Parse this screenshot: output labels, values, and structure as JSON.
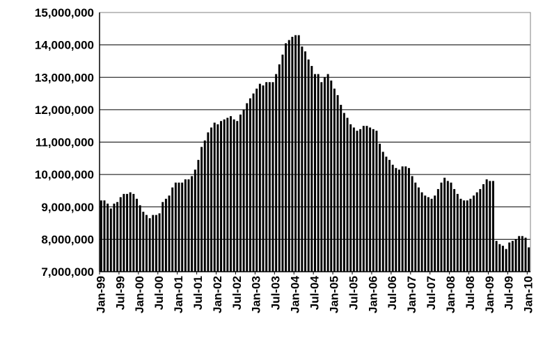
{
  "chart_data": {
    "type": "bar",
    "title": "",
    "xlabel": "",
    "ylabel": "",
    "ylim": [
      7000000,
      15000000
    ],
    "grid": true,
    "yticks": [
      "7,000,000",
      "8,000,000",
      "9,000,000",
      "10,000,000",
      "11,000,000",
      "12,000,000",
      "13,000,000",
      "14,000,000",
      "15,000,000"
    ],
    "xticks": [
      "Jan-99",
      "Jul-99",
      "Jan-00",
      "Jul-00",
      "Jan-01",
      "Jul-01",
      "Jan-02",
      "Jul-02",
      "Jan-03",
      "Jul-03",
      "Jan-04",
      "Jul-04",
      "Jan-05",
      "Jul-05",
      "Jan-06",
      "Jul-06",
      "Jan-07",
      "Jul-07",
      "Jan-08",
      "Jul-08",
      "Jan-09",
      "Jul-09",
      "Jan-10"
    ],
    "bar_color": "#000000",
    "series": [
      {
        "values": [
          9200000,
          9200000,
          9100000,
          8950000,
          9100000,
          9150000,
          9300000,
          9400000,
          9400000,
          9450000,
          9400000,
          9250000,
          9050000,
          8850000,
          8750000,
          8650000,
          8750000,
          8750000,
          8800000,
          9150000,
          9250000,
          9350000,
          9600000,
          9750000,
          9750000,
          9750000,
          9850000,
          9850000,
          9950000,
          10150000,
          10450000,
          10850000,
          11050000,
          11300000,
          11450000,
          11600000,
          11550000,
          11650000,
          11700000,
          11750000,
          11800000,
          11700000,
          11650000,
          11850000,
          12000000,
          12200000,
          12350000,
          12500000,
          12650000,
          12800000,
          12750000,
          12850000,
          12850000,
          12850000,
          13100000,
          13400000,
          13700000,
          14050000,
          14150000,
          14250000,
          14300000,
          14300000,
          13950000,
          13800000,
          13550000,
          13350000,
          13100000,
          13100000,
          12850000,
          13000000,
          13100000,
          12900000,
          12650000,
          12450000,
          12150000,
          11900000,
          11750000,
          11550000,
          11450000,
          11350000,
          11400000,
          11500000,
          11500000,
          11450000,
          11400000,
          11350000,
          10950000,
          10700000,
          10550000,
          10450000,
          10300000,
          10200000,
          10150000,
          10250000,
          10250000,
          10200000,
          9950000,
          9750000,
          9600000,
          9450000,
          9350000,
          9300000,
          9250000,
          9350000,
          9550000,
          9750000,
          9900000,
          9800000,
          9750000,
          9550000,
          9400000,
          9250000,
          9200000,
          9200000,
          9250000,
          9350000,
          9450000,
          9550000,
          9700000,
          9850000,
          9800000,
          9800000,
          7950000,
          7850000,
          7800000,
          7700000,
          7900000,
          7950000,
          8000000,
          8100000,
          8100000,
          8050000,
          7750000
        ]
      }
    ]
  }
}
